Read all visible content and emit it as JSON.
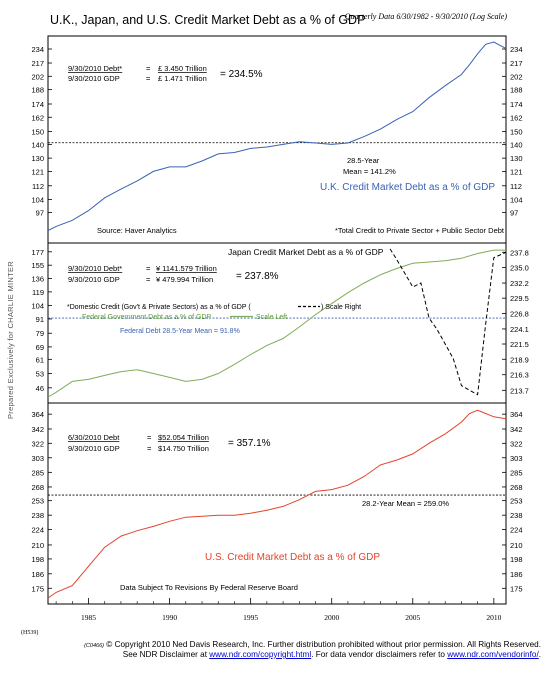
{
  "header": {
    "title": "U.K., Japan, and U.S. Credit Market Debt as a % of GDP",
    "subtitle": "Quarterly Data 6/30/1982 - 9/30/2010 (Log Scale)"
  },
  "sidebar_text": "Prepared Exclusively for CHARLIE MINTER",
  "chart_code": "(H539)",
  "footer": {
    "code": "(C0466)",
    "line1": "© Copyright 2010 Ned Davis Research, Inc.  Further distribution prohibited without prior permission.  All Rights Reserved.",
    "line2_pre": "See NDR Disclaimer at ",
    "line2_link1": "www.ndr.com/copyright.html",
    "line2_mid": ". For data vendor disclaimers refer to ",
    "line2_link2": "www.ndr.com/vendorinfo/",
    "line2_post": "."
  },
  "colors": {
    "uk": "#3a62b5",
    "japan_gov": "#7fad5a",
    "japan_dom": "#000000",
    "us": "#e2442b",
    "mean_line": "#000000",
    "japan_mean": "#3a62b5"
  },
  "chart_data": [
    {
      "type": "line",
      "name": "uk",
      "x_range": [
        1982.5,
        2010.75
      ],
      "ylim": [
        85,
        243
      ],
      "log_scale": true,
      "left_ticks": [
        97,
        104,
        112,
        121,
        130,
        140,
        150,
        162,
        174,
        188,
        202,
        217,
        234
      ],
      "right_ticks": [
        97,
        104,
        112,
        121,
        130,
        140,
        150,
        162,
        174,
        188,
        202,
        217,
        234
      ],
      "series": [
        {
          "name": "U.K. Credit Market Debt as a % of GDP",
          "x": [
            1982.5,
            1983,
            1984,
            1985,
            1986,
            1987,
            1988,
            1989,
            1990,
            1991,
            1992,
            1993,
            1994,
            1995,
            1996,
            1997,
            1998,
            1999,
            2000,
            2001,
            2002,
            2003,
            2004,
            2005,
            2006,
            2007,
            2008,
            2008.5,
            2009,
            2009.5,
            2010,
            2010.75
          ],
          "values": [
            88,
            90,
            93,
            98,
            105,
            110,
            115,
            121,
            124,
            124,
            128,
            133,
            134,
            137,
            138,
            140,
            142,
            141,
            140,
            141,
            146,
            152,
            160,
            167,
            180,
            192,
            204,
            215,
            228,
            240,
            243,
            234.5
          ]
        }
      ],
      "annotations": {
        "debt_label": "9/30/2010  Debt*",
        "debt_eq": "=",
        "debt_value": "£  3.450 Trillion",
        "gdp_label": "9/30/2010  GDP",
        "gdp_eq": "=",
        "gdp_value": "£  1.471 Trillion",
        "ratio": "=  234.5%",
        "mean_value": 141.2,
        "mean_title": "28.5-Year",
        "mean_label": "Mean = 141.2%",
        "series_label": "U.K. Credit Market Debt as a % of GDP",
        "source": "Source: Haver Analytics",
        "footnote": "*Total Credit to Private Sector + Public Sector Debt"
      }
    },
    {
      "type": "line",
      "name": "japan",
      "x_range": [
        1982.5,
        2010.75
      ],
      "ylim": [
        42,
        182
      ],
      "right_ylim": [
        212.6,
        238.4
      ],
      "log_scale": true,
      "left_ticks": [
        46,
        53,
        61,
        69,
        79,
        91,
        104,
        119,
        136,
        155,
        177
      ],
      "right_ticks": [
        213.7,
        216.3,
        218.9,
        221.5,
        224.1,
        226.8,
        229.5,
        232.2,
        235.0,
        237.8
      ],
      "series": [
        {
          "name": "Federal Government Debt as a % of GDP",
          "axis": "left",
          "x": [
            1982.5,
            1983,
            1984,
            1985,
            1986,
            1987,
            1988,
            1989,
            1990,
            1991,
            1992,
            1993,
            1994,
            1995,
            1996,
            1997,
            1998,
            1999,
            2000,
            2001,
            2002,
            2003,
            2004,
            2005,
            2006,
            2007,
            2008,
            2009,
            2010,
            2010.75
          ],
          "values": [
            42,
            44,
            49,
            50,
            52,
            54,
            55,
            53,
            51,
            49,
            50,
            53,
            58,
            64,
            70,
            75,
            84,
            95,
            106,
            118,
            130,
            141,
            150,
            158,
            160,
            162,
            166,
            174,
            180,
            180
          ]
        },
        {
          "name": "Domestic Credit (Gov't & Private Sectors) as a % of GDP",
          "axis": "right",
          "dashed": true,
          "x": [
            2003.6,
            2004,
            2004.5,
            2005,
            2005.5,
            2006,
            2006.5,
            2007,
            2007.5,
            2008,
            2008.5,
            2009,
            2009.5,
            2010,
            2010.75
          ],
          "values": [
            238.4,
            236.5,
            234.0,
            231.5,
            232.2,
            226.0,
            224.0,
            221.5,
            219.0,
            214.5,
            213.7,
            213.0,
            225.0,
            236.8,
            237.8
          ]
        }
      ],
      "annotations": {
        "title": "Japan Credit Market Debt as a % of GDP",
        "debt_label": "9/30/2010  Debt*",
        "debt_eq": "=",
        "debt_value": "¥  1141.579 Trillion",
        "gdp_label": "9/30/2010  GDP",
        "gdp_eq": "=",
        "gdp_value": "¥   479.994 Trillion",
        "ratio": "=  237.8%",
        "legend_dom_pre": "*Domestic  Credit (Gov't & Private Sectors) as a % of GDP  (",
        "legend_dom_post": ")  Scale Right",
        "legend_gov_pre": "Federal Government Debt as a % of GDP",
        "legend_gov_post": "Scale Left",
        "mean_value": 91.8,
        "mean_label": "Federal Debt 28.5-Year Mean = 91.8%"
      }
    },
    {
      "type": "line",
      "name": "us",
      "x_range": [
        1982.5,
        2010.75
      ],
      "ylim": [
        168,
        372
      ],
      "log_scale": true,
      "left_ticks": [
        175,
        186,
        198,
        210,
        224,
        238,
        253,
        268,
        285,
        303,
        322,
        342,
        364
      ],
      "right_ticks": [
        175,
        186,
        198,
        210,
        224,
        238,
        253,
        268,
        285,
        303,
        322,
        342,
        364
      ],
      "x_ticks": [
        1985,
        1990,
        1995,
        2000,
        2005,
        2010
      ],
      "series": [
        {
          "name": "U.S. Credit Market Debt as a % of GDP",
          "x": [
            1982.5,
            1983,
            1984,
            1985,
            1986,
            1987,
            1988,
            1989,
            1990,
            1991,
            1992,
            1993,
            1994,
            1995,
            1996,
            1997,
            1998,
            1999,
            2000,
            2001,
            2002,
            2003,
            2004,
            2005,
            2006,
            2007,
            2008,
            2008.5,
            2009,
            2009.5,
            2010,
            2010.75
          ],
          "values": [
            168,
            172,
            177,
            192,
            208,
            218,
            223,
            227,
            232,
            236,
            237,
            238,
            238,
            240,
            243,
            247,
            254,
            263,
            265,
            270,
            280,
            294,
            300,
            308,
            322,
            335,
            352,
            365,
            370,
            365,
            360,
            357.1
          ]
        }
      ],
      "annotations": {
        "debt_label": "6/30/2010  Debt",
        "debt_eq": "=",
        "debt_value": "$52.054 Trillion",
        "gdp_label": "9/30/2010  GDP",
        "gdp_eq": "=",
        "gdp_value": "$14.750 Trillion",
        "ratio": "=  357.1%",
        "mean_value": 259.0,
        "mean_label": "28.2-Year Mean = 259.0%",
        "series_label": "U.S. Credit Market Debt as a % of GDP",
        "note": "Data Subject To Revisions By Federal Reserve Board"
      }
    }
  ]
}
